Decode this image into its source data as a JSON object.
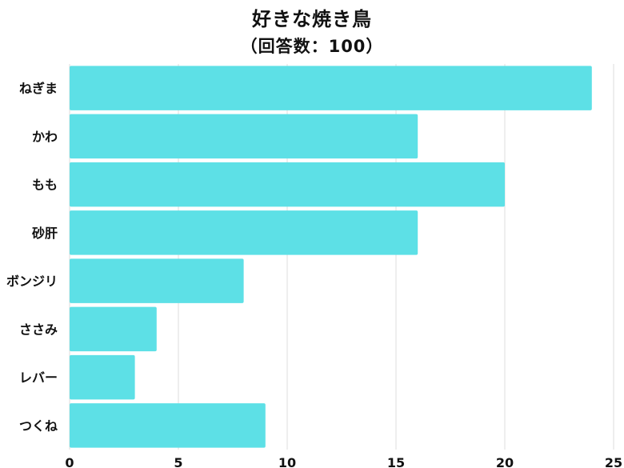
{
  "chart_data": {
    "type": "bar",
    "orientation": "horizontal",
    "title": "好きな焼き鳥",
    "subtitle": "（回答数：100）",
    "categories": [
      "ねぎま",
      "かわ",
      "もも",
      "砂肝",
      "ボンジリ",
      "ささみ",
      "レバー",
      "つくね"
    ],
    "values": [
      24,
      16,
      20,
      16,
      8,
      4,
      3,
      9
    ],
    "xlim": [
      0,
      25
    ],
    "xticks": [
      "0",
      "5",
      "10",
      "15",
      "20",
      "25"
    ],
    "xlabel": "",
    "ylabel": "",
    "grid": "vertical",
    "bar_color": "#5de0e6",
    "grid_color": "#e2e2e2"
  }
}
